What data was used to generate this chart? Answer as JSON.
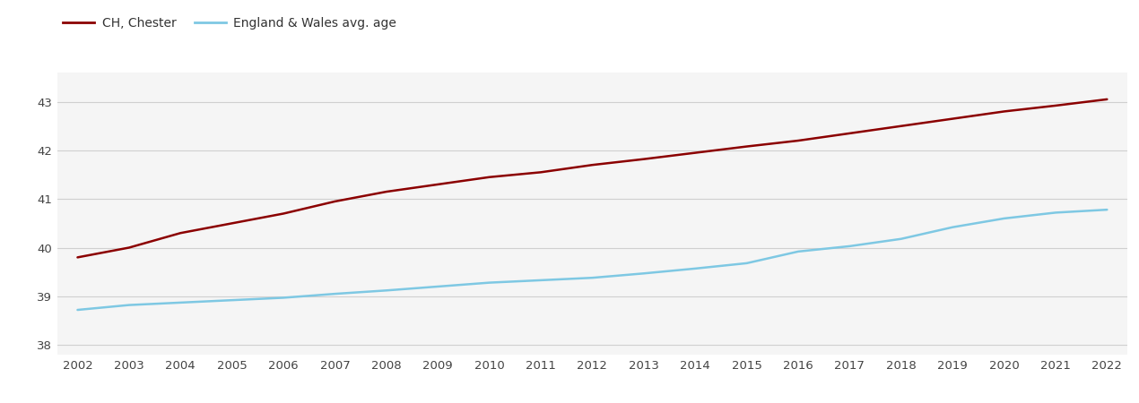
{
  "years": [
    2002,
    2003,
    2004,
    2005,
    2006,
    2007,
    2008,
    2009,
    2010,
    2011,
    2012,
    2013,
    2014,
    2015,
    2016,
    2017,
    2018,
    2019,
    2020,
    2021,
    2022
  ],
  "chester": [
    39.8,
    40.0,
    40.3,
    40.5,
    40.7,
    40.95,
    41.15,
    41.3,
    41.45,
    41.55,
    41.7,
    41.82,
    41.95,
    42.08,
    42.2,
    42.35,
    42.5,
    42.65,
    42.8,
    42.92,
    43.05
  ],
  "england_wales": [
    38.72,
    38.82,
    38.87,
    38.92,
    38.97,
    39.05,
    39.12,
    39.2,
    39.28,
    39.33,
    39.38,
    39.47,
    39.57,
    39.68,
    39.92,
    40.03,
    40.18,
    40.42,
    40.6,
    40.72,
    40.78
  ],
  "chester_color": "#8B0000",
  "england_wales_color": "#7EC8E3",
  "chester_label": "CH, Chester",
  "england_wales_label": "England & Wales avg. age",
  "ylim": [
    37.8,
    43.6
  ],
  "yticks": [
    38,
    39,
    40,
    41,
    42,
    43
  ],
  "background_color": "#ffffff",
  "plot_bg_color": "#f5f5f5",
  "line_width": 1.8,
  "grid_color": "#d0d0d0"
}
